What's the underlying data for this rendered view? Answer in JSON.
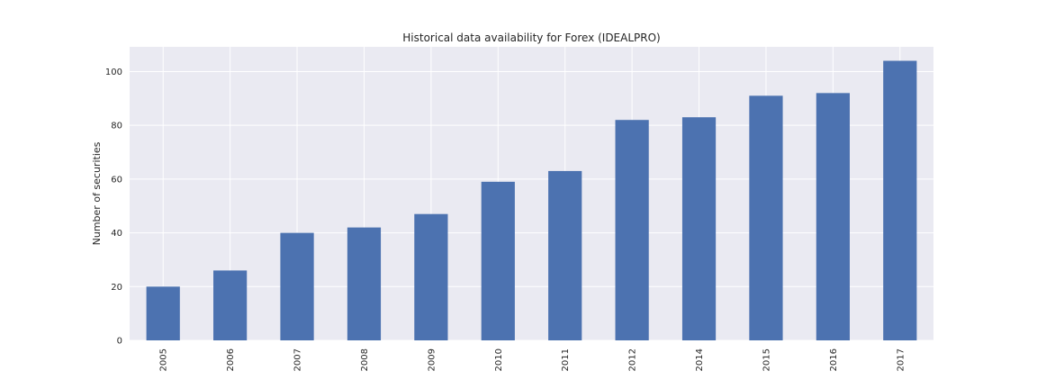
{
  "chart_data": {
    "type": "bar",
    "title": "Historical data availability for Forex (IDEALPRO)",
    "xlabel": "",
    "ylabel": "Number of securities",
    "categories": [
      "2005",
      "2006",
      "2007",
      "2008",
      "2009",
      "2010",
      "2011",
      "2012",
      "2014",
      "2015",
      "2016",
      "2017"
    ],
    "values": [
      20,
      26,
      40,
      42,
      47,
      59,
      63,
      82,
      83,
      91,
      92,
      104
    ],
    "ylim": [
      0,
      109.2
    ],
    "yticks": [
      0,
      20,
      40,
      60,
      80,
      100
    ],
    "grid": true,
    "legend": "none",
    "colors": {
      "bar": "#4c72b0",
      "plot_background": "#eaeaf2",
      "grid": "#ffffff"
    }
  }
}
